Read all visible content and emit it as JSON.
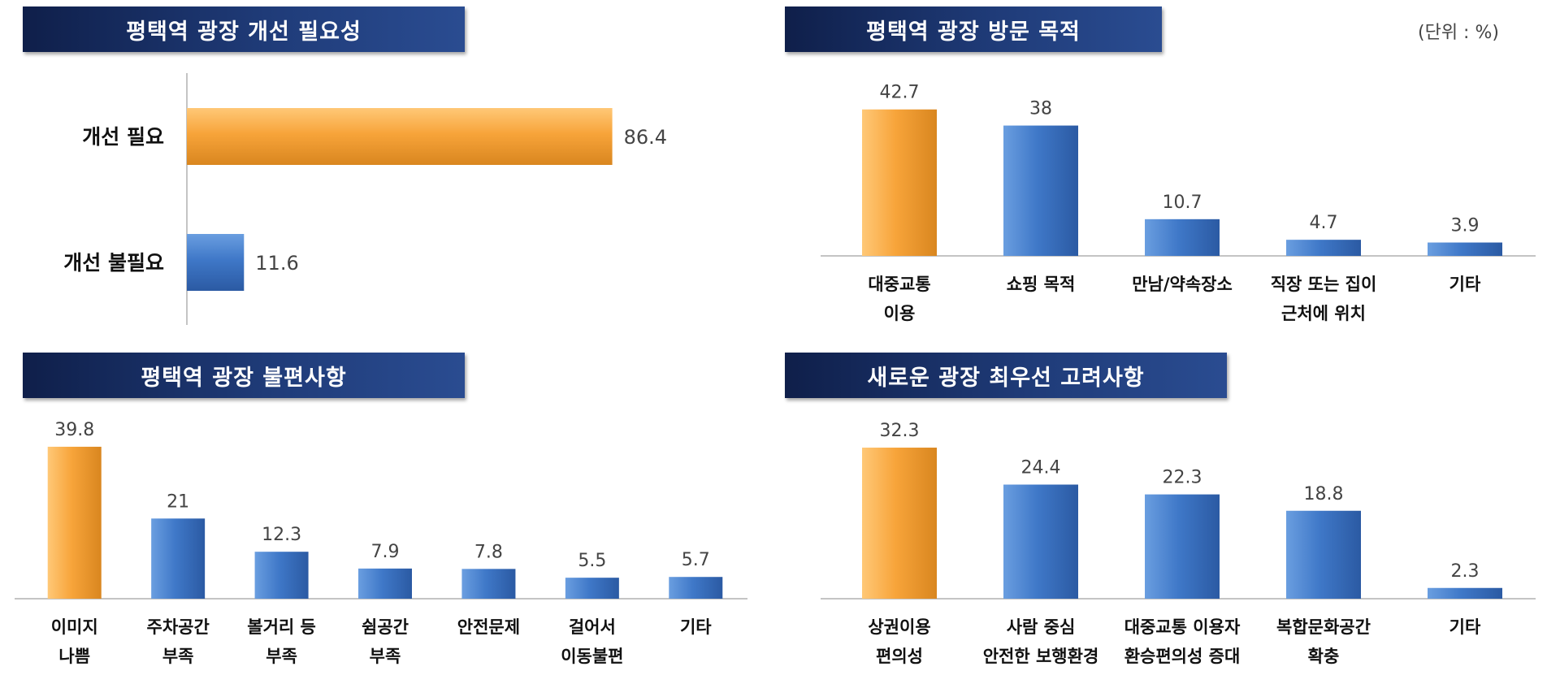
{
  "unit": "(단위 : %)",
  "chart_data": [
    {
      "type": "bar",
      "orientation": "horizontal",
      "title": "평택역 광장 개선 필요성",
      "categories": [
        "개선 필요",
        "개선 불필요"
      ],
      "values": [
        86.4,
        11.6
      ],
      "highlight_index": 0
    },
    {
      "type": "bar",
      "orientation": "vertical",
      "title": "평택역 광장 방문 목적",
      "categories": [
        [
          "대중교통",
          "이용"
        ],
        [
          "쇼핑 목적"
        ],
        [
          "만남/약속장소"
        ],
        [
          "직장 또는 집이",
          "근처에 위치"
        ],
        [
          "기타"
        ]
      ],
      "values": [
        42.7,
        38,
        10.7,
        4.7,
        3.9
      ],
      "highlight_index": 0
    },
    {
      "type": "bar",
      "orientation": "vertical",
      "title": "평택역 광장 불편사항",
      "categories": [
        [
          "이미지",
          "나쁨"
        ],
        [
          "주차공간",
          "부족"
        ],
        [
          "볼거리 등",
          "부족"
        ],
        [
          "쉼공간",
          "부족"
        ],
        [
          "안전문제"
        ],
        [
          "걸어서",
          "이동불편"
        ],
        [
          "기타"
        ]
      ],
      "values": [
        39.8,
        21,
        12.3,
        7.9,
        7.8,
        5.5,
        5.7
      ],
      "highlight_index": 0
    },
    {
      "type": "bar",
      "orientation": "vertical",
      "title": "새로운 광장 최우선 고려사항",
      "categories": [
        [
          "상권이용",
          "편의성"
        ],
        [
          "사람 중심",
          "안전한 보행환경"
        ],
        [
          "대중교통 이용자",
          "환승편의성 증대"
        ],
        [
          "복합문화공간",
          "확충"
        ],
        [
          "기타"
        ]
      ],
      "values": [
        32.3,
        24.4,
        22.3,
        18.8,
        2.3
      ],
      "highlight_index": 0
    }
  ],
  "colors": {
    "highlight": "#f7a43a",
    "bar": "#3f78c8",
    "axis": "#b0b0b0",
    "value_text": "#444444"
  }
}
